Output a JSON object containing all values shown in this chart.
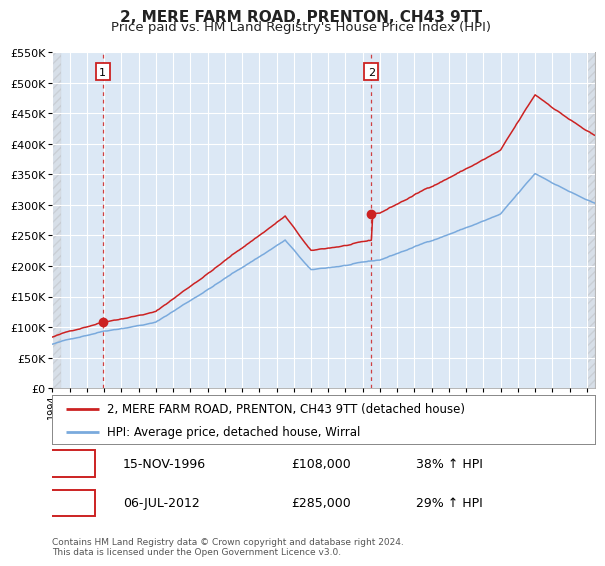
{
  "title": "2, MERE FARM ROAD, PRENTON, CH43 9TT",
  "subtitle": "Price paid vs. HM Land Registry's House Price Index (HPI)",
  "legend_line1": "2, MERE FARM ROAD, PRENTON, CH43 9TT (detached house)",
  "legend_line2": "HPI: Average price, detached house, Wirral",
  "annotation_footnote": "Contains HM Land Registry data © Crown copyright and database right 2024.\nThis data is licensed under the Open Government Licence v3.0.",
  "hpi_color": "#7aaadd",
  "price_color": "#cc2222",
  "sale1_yr": 1996.917,
  "sale1_price": 108000,
  "sale1_text": "15-NOV-1996",
  "sale1_pct": "38% ↑ HPI",
  "sale2_yr": 2012.5,
  "sale2_price": 285000,
  "sale2_text": "06-JUL-2012",
  "sale2_pct": "29% ↑ HPI",
  "xmin": 1994.0,
  "xmax": 2025.5,
  "ymin": 0,
  "ymax": 550000,
  "yticks": [
    0,
    50000,
    100000,
    150000,
    200000,
    250000,
    300000,
    350000,
    400000,
    450000,
    500000,
    550000
  ],
  "background_color": "#ffffff",
  "plot_bg_color": "#dce8f5",
  "grid_color": "#ffffff",
  "title_fontsize": 11,
  "subtitle_fontsize": 9.5
}
